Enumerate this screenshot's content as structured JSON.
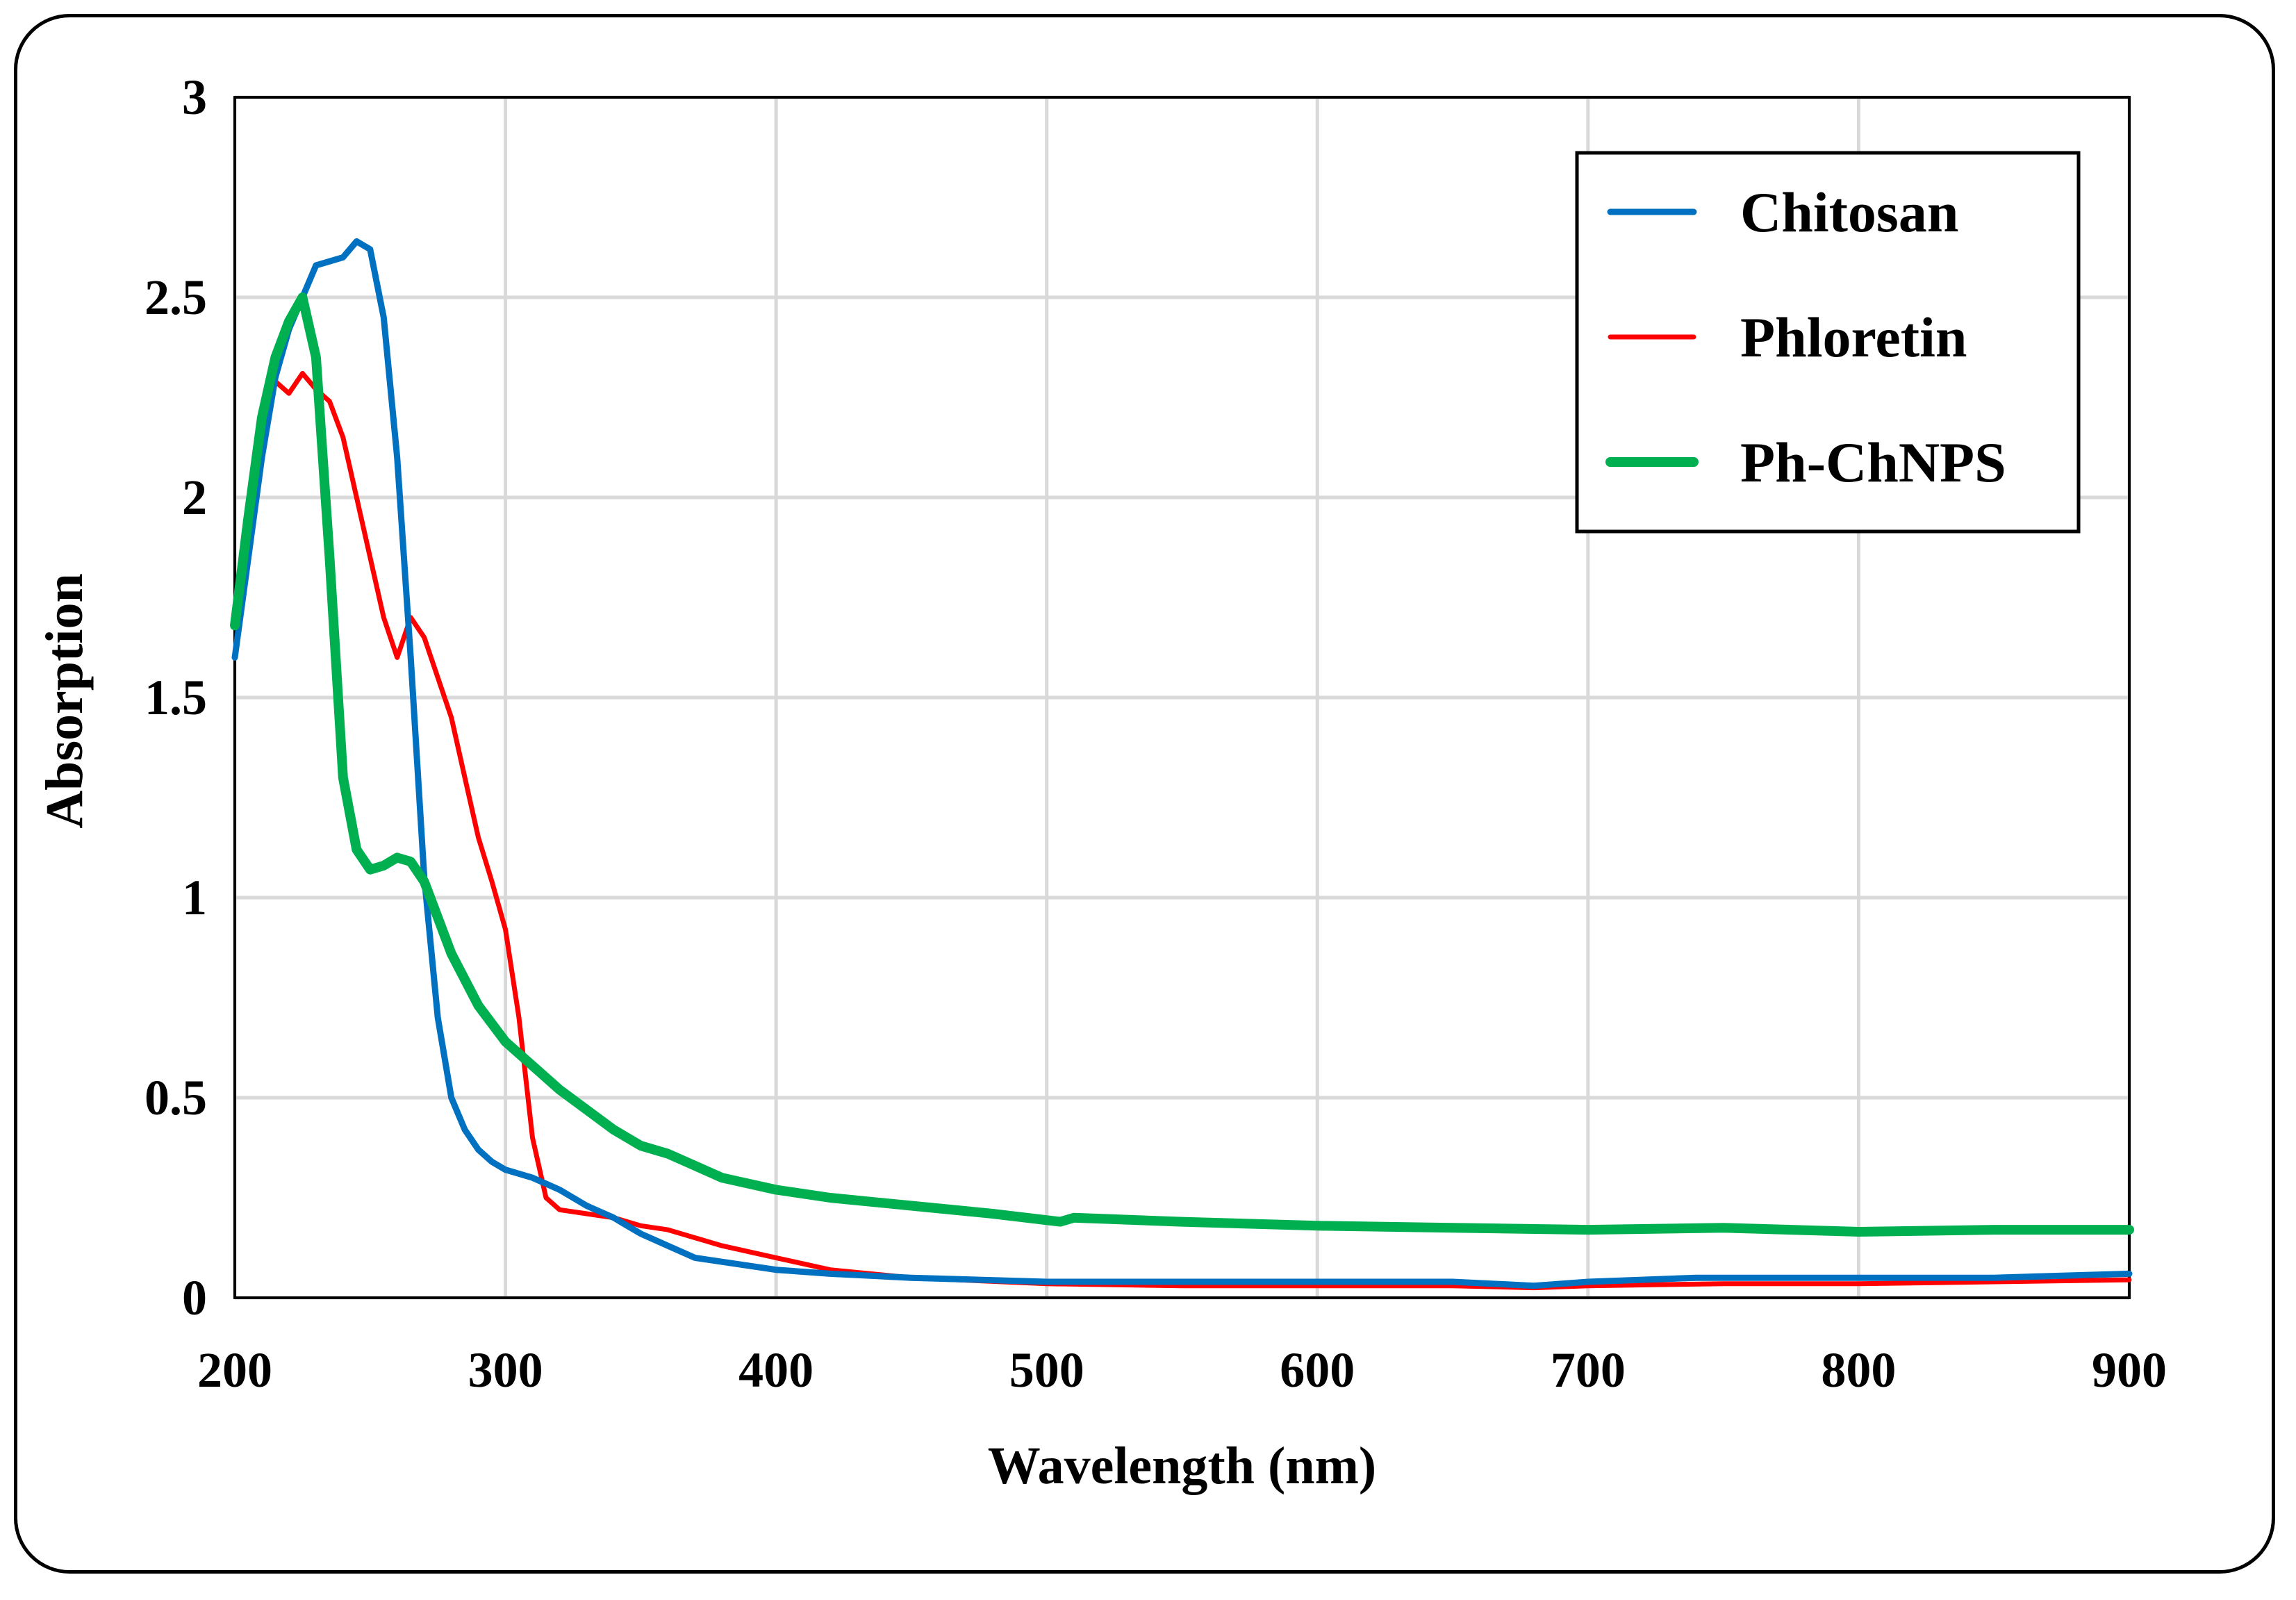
{
  "chart_data": {
    "type": "line",
    "title": "",
    "xlabel": "Wavelength (nm)",
    "ylabel": "Absorption",
    "xlim": [
      200,
      900
    ],
    "ylim": [
      0,
      3
    ],
    "x_ticks": [
      200,
      300,
      400,
      500,
      600,
      700,
      800,
      900
    ],
    "y_ticks": [
      0,
      0.5,
      1,
      1.5,
      2,
      2.5,
      3
    ],
    "x_tick_labels": [
      "200",
      "300",
      "400",
      "500",
      "600",
      "700",
      "800",
      "900"
    ],
    "y_tick_labels": [
      "0",
      "0.5",
      "1",
      "1.5",
      "2",
      "2.5",
      "3"
    ],
    "grid": true,
    "legend_position": "top-right",
    "series": [
      {
        "name": "Chitosan",
        "color": "#0070c0",
        "points": [
          [
            200,
            1.6
          ],
          [
            205,
            1.85
          ],
          [
            210,
            2.1
          ],
          [
            215,
            2.3
          ],
          [
            220,
            2.42
          ],
          [
            225,
            2.5
          ],
          [
            230,
            2.58
          ],
          [
            235,
            2.59
          ],
          [
            240,
            2.6
          ],
          [
            245,
            2.64
          ],
          [
            250,
            2.62
          ],
          [
            255,
            2.45
          ],
          [
            260,
            2.1
          ],
          [
            265,
            1.6
          ],
          [
            270,
            1.05
          ],
          [
            275,
            0.7
          ],
          [
            280,
            0.5
          ],
          [
            285,
            0.42
          ],
          [
            290,
            0.37
          ],
          [
            295,
            0.34
          ],
          [
            300,
            0.32
          ],
          [
            310,
            0.3
          ],
          [
            320,
            0.27
          ],
          [
            330,
            0.23
          ],
          [
            340,
            0.2
          ],
          [
            350,
            0.16
          ],
          [
            360,
            0.13
          ],
          [
            370,
            0.1
          ],
          [
            380,
            0.09
          ],
          [
            400,
            0.07
          ],
          [
            420,
            0.06
          ],
          [
            450,
            0.05
          ],
          [
            500,
            0.04
          ],
          [
            550,
            0.04
          ],
          [
            600,
            0.04
          ],
          [
            650,
            0.04
          ],
          [
            680,
            0.03
          ],
          [
            700,
            0.04
          ],
          [
            740,
            0.05
          ],
          [
            760,
            0.05
          ],
          [
            800,
            0.05
          ],
          [
            850,
            0.05
          ],
          [
            900,
            0.06
          ]
        ]
      },
      {
        "name": "Phloretin",
        "color": "#ff0000",
        "points": [
          [
            200,
            1.7
          ],
          [
            205,
            1.95
          ],
          [
            210,
            2.2
          ],
          [
            215,
            2.29
          ],
          [
            220,
            2.26
          ],
          [
            225,
            2.31
          ],
          [
            230,
            2.27
          ],
          [
            235,
            2.24
          ],
          [
            240,
            2.15
          ],
          [
            245,
            2.0
          ],
          [
            250,
            1.85
          ],
          [
            255,
            1.7
          ],
          [
            260,
            1.6
          ],
          [
            265,
            1.7
          ],
          [
            270,
            1.65
          ],
          [
            275,
            1.55
          ],
          [
            280,
            1.45
          ],
          [
            285,
            1.3
          ],
          [
            290,
            1.15
          ],
          [
            295,
            1.04
          ],
          [
            300,
            0.92
          ],
          [
            305,
            0.7
          ],
          [
            310,
            0.4
          ],
          [
            315,
            0.25
          ],
          [
            320,
            0.22
          ],
          [
            330,
            0.21
          ],
          [
            340,
            0.2
          ],
          [
            350,
            0.18
          ],
          [
            360,
            0.17
          ],
          [
            370,
            0.15
          ],
          [
            380,
            0.13
          ],
          [
            400,
            0.1
          ],
          [
            420,
            0.07
          ],
          [
            450,
            0.05
          ],
          [
            500,
            0.035
          ],
          [
            550,
            0.03
          ],
          [
            600,
            0.03
          ],
          [
            650,
            0.03
          ],
          [
            680,
            0.025
          ],
          [
            700,
            0.03
          ],
          [
            750,
            0.035
          ],
          [
            800,
            0.035
          ],
          [
            850,
            0.04
          ],
          [
            900,
            0.045
          ]
        ]
      },
      {
        "name": "Ph-ChNPS",
        "color": "#00b050",
        "points": [
          [
            200,
            1.68
          ],
          [
            205,
            1.95
          ],
          [
            210,
            2.2
          ],
          [
            215,
            2.35
          ],
          [
            220,
            2.44
          ],
          [
            225,
            2.5
          ],
          [
            230,
            2.35
          ],
          [
            235,
            1.85
          ],
          [
            240,
            1.3
          ],
          [
            245,
            1.12
          ],
          [
            250,
            1.07
          ],
          [
            255,
            1.08
          ],
          [
            260,
            1.1
          ],
          [
            265,
            1.09
          ],
          [
            270,
            1.04
          ],
          [
            275,
            0.95
          ],
          [
            280,
            0.86
          ],
          [
            290,
            0.73
          ],
          [
            300,
            0.64
          ],
          [
            310,
            0.58
          ],
          [
            320,
            0.52
          ],
          [
            330,
            0.47
          ],
          [
            340,
            0.42
          ],
          [
            350,
            0.38
          ],
          [
            360,
            0.36
          ],
          [
            370,
            0.33
          ],
          [
            380,
            0.3
          ],
          [
            400,
            0.27
          ],
          [
            420,
            0.25
          ],
          [
            450,
            0.23
          ],
          [
            480,
            0.21
          ],
          [
            505,
            0.19
          ],
          [
            510,
            0.2
          ],
          [
            550,
            0.19
          ],
          [
            600,
            0.18
          ],
          [
            650,
            0.175
          ],
          [
            700,
            0.17
          ],
          [
            750,
            0.175
          ],
          [
            800,
            0.165
          ],
          [
            850,
            0.17
          ],
          [
            900,
            0.17
          ]
        ]
      }
    ]
  }
}
